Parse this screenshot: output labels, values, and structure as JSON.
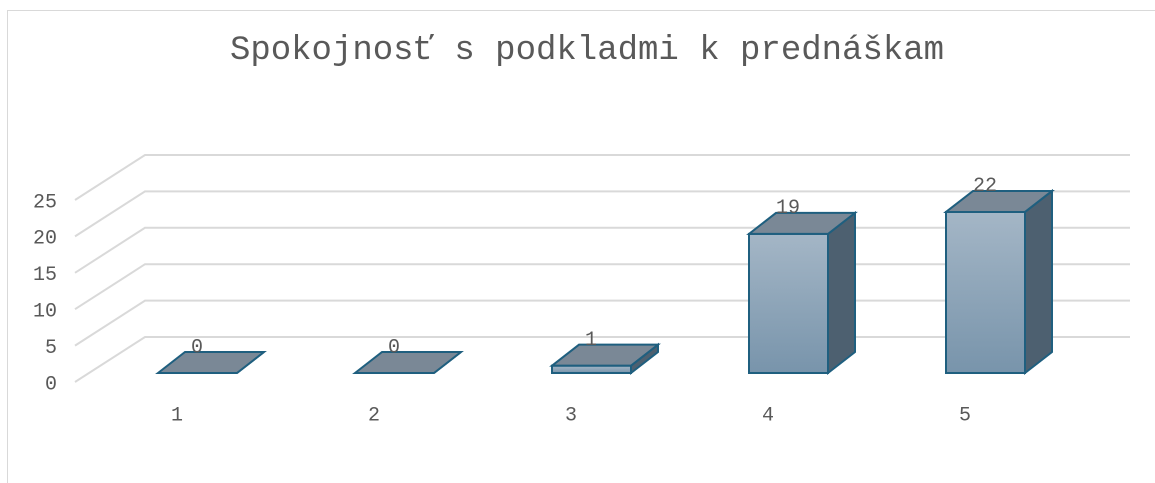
{
  "chart_data": {
    "type": "bar3d",
    "title": "Spokojnosť s podkladmi k prednáškam",
    "categories": [
      "1",
      "2",
      "3",
      "4",
      "5"
    ],
    "values": [
      0,
      0,
      1,
      19,
      22
    ],
    "ylim": [
      0,
      25
    ],
    "yticks": [
      0,
      5,
      10,
      15,
      20,
      25
    ],
    "grid": true,
    "color": "#8aa3b8"
  }
}
